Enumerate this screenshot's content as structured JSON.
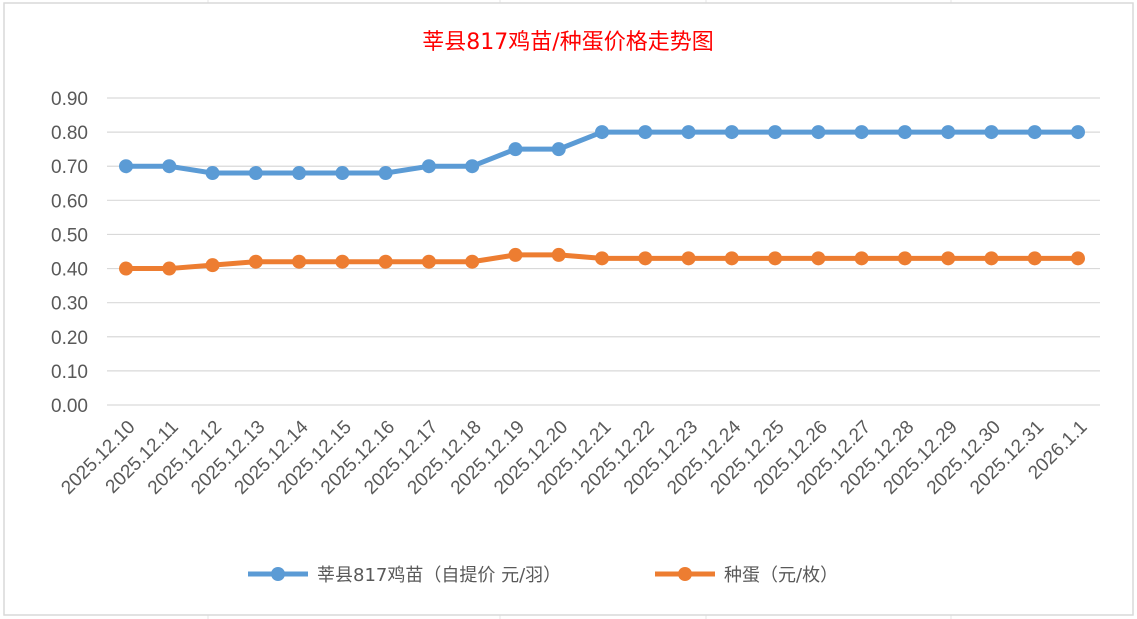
{
  "chart_data": {
    "type": "line",
    "title": "莘县817鸡苗/种蛋价格走势图",
    "xlabel": "",
    "ylabel": "",
    "ylim": [
      0,
      0.9
    ],
    "yticks": [
      "0.00",
      "0.10",
      "0.20",
      "0.30",
      "0.40",
      "0.50",
      "0.60",
      "0.70",
      "0.80",
      "0.90"
    ],
    "grid": true,
    "legend_position": "bottom",
    "categories": [
      "2025.12.10",
      "2025.12.11",
      "2025.12.12",
      "2025.12.13",
      "2025.12.14",
      "2025.12.15",
      "2025.12.16",
      "2025.12.17",
      "2025.12.18",
      "2025.12.19",
      "2025.12.20",
      "2025.12.21",
      "2025.12.22",
      "2025.12.23",
      "2025.12.24",
      "2025.12.25",
      "2025.12.26",
      "2025.12.27",
      "2025.12.28",
      "2025.12.29",
      "2025.12.30",
      "2025.12.31",
      "2026.1.1"
    ],
    "series": [
      {
        "name": "莘县817鸡苗（自提价 元/羽）",
        "color": "#5b9bd5",
        "values": [
          0.7,
          0.7,
          0.68,
          0.68,
          0.68,
          0.68,
          0.68,
          0.7,
          0.7,
          0.75,
          0.75,
          0.8,
          0.8,
          0.8,
          0.8,
          0.8,
          0.8,
          0.8,
          0.8,
          0.8,
          0.8,
          0.8,
          0.8
        ]
      },
      {
        "name": "种蛋（元/枚）",
        "color": "#ed7d31",
        "values": [
          0.4,
          0.4,
          0.41,
          0.42,
          0.42,
          0.42,
          0.42,
          0.42,
          0.42,
          0.44,
          0.44,
          0.43,
          0.43,
          0.43,
          0.43,
          0.43,
          0.43,
          0.43,
          0.43,
          0.43,
          0.43,
          0.43,
          0.43
        ]
      }
    ]
  }
}
